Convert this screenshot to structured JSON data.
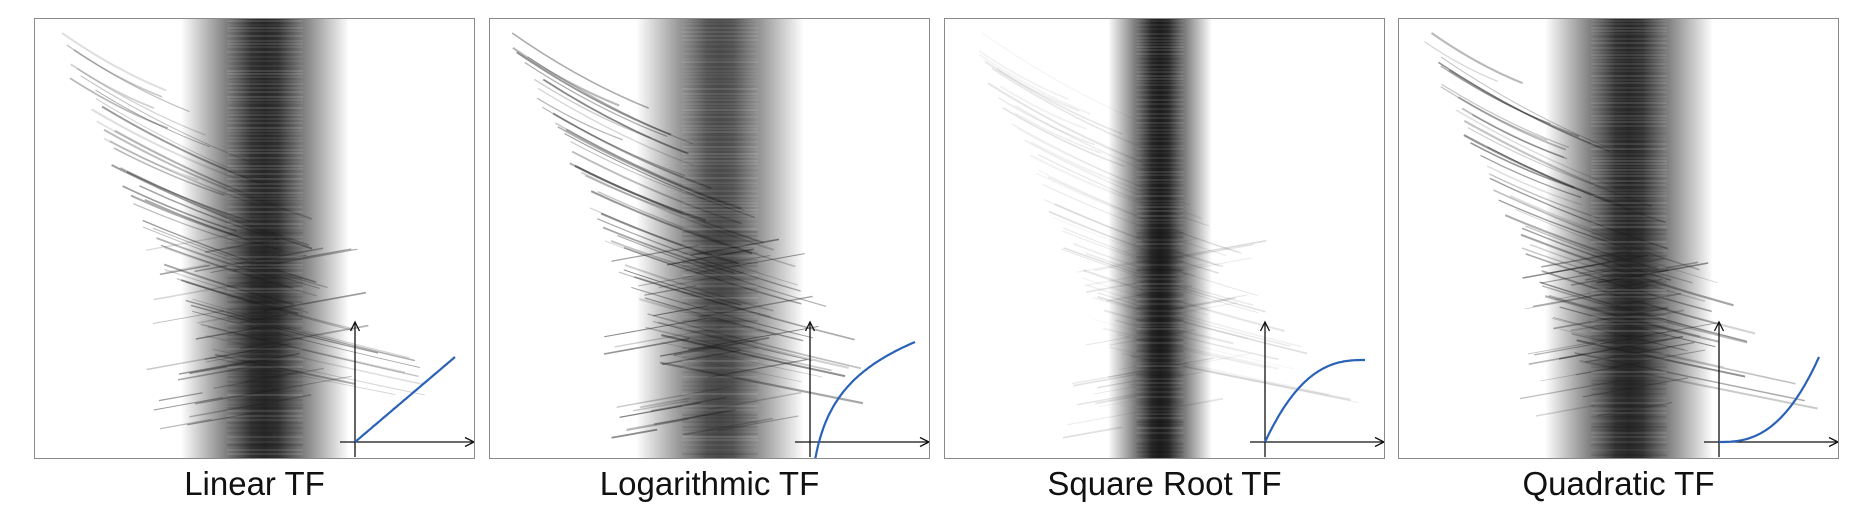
{
  "colors": {
    "background": "#ffffff",
    "panel_border": "#8a8a8a",
    "band": "#1c1c1c",
    "streak": "#2a2a2a",
    "curve": "#2a62b8",
    "axes": "#111111"
  },
  "panels": [
    {
      "id": "linear",
      "caption": "Linear TF",
      "curve": "linear",
      "streak_strength": 0.55,
      "band_strength": 0.95,
      "band_width": "wide"
    },
    {
      "id": "logarithmic",
      "caption": "Logarithmic TF",
      "curve": "logarithmic",
      "streak_strength": 0.7,
      "band_strength": 0.8,
      "band_width": "wide"
    },
    {
      "id": "square-root",
      "caption": "Square Root TF",
      "curve": "square-root",
      "streak_strength": 0.18,
      "band_strength": 1.0,
      "band_width": "narrow"
    },
    {
      "id": "quadratic",
      "caption": "Quadratic TF",
      "curve": "quadratic",
      "streak_strength": 0.6,
      "band_strength": 0.95,
      "band_width": "wide"
    }
  ]
}
